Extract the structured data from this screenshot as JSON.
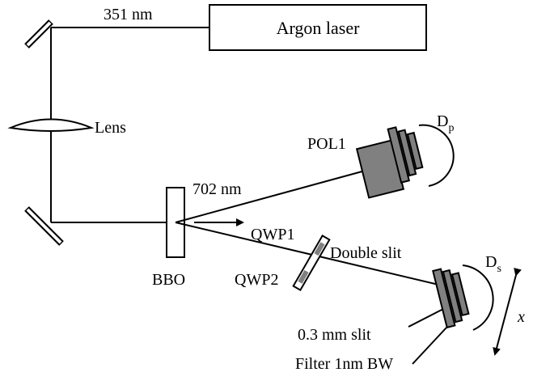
{
  "labels": {
    "uv_wavelength": "351 nm",
    "laser": "Argon laser",
    "lens": "Lens",
    "detector_p_main": "D",
    "detector_p_sub": "p",
    "pol1": "POL1",
    "ir_wavelength": "702 nm",
    "qwp1": "QWP1",
    "double_slit": "Double slit",
    "qwp2": "QWP2",
    "bbo": "BBO",
    "detector_s_main": "D",
    "detector_s_sub": "s",
    "slit": "0.3 mm slit",
    "x": "x",
    "filter": "Filter 1nm BW"
  },
  "colors": {
    "line": "#000000",
    "component_fill": "#808080",
    "background": "#ffffff"
  }
}
